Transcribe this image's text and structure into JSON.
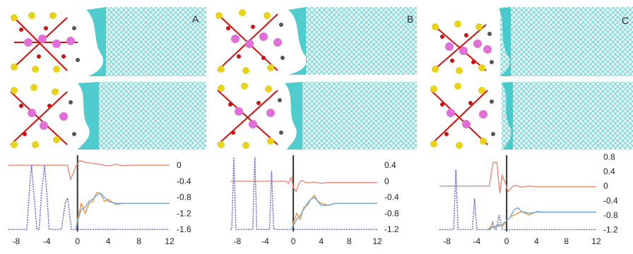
{
  "panels": [
    {
      "label": "A",
      "chart_data": {
        "type": "line",
        "x_ticks": [
          "-8",
          "-4",
          "0",
          "4",
          "8",
          "12"
        ],
        "xlim": [
          -9,
          12
        ],
        "y_ticks": [
          "0",
          "-0.4",
          "-0.8",
          "-1.2",
          "-1.6"
        ],
        "ylim": [
          -1.65,
          0.25
        ],
        "grid": false,
        "series": [
          {
            "color": "#e88a7a",
            "dashed": false,
            "x": [
              -9,
              -1.3,
              -1.2,
              -0.9,
              -0.6,
              -0.2,
              0.3,
              1,
              2,
              3,
              4,
              5,
              6,
              7,
              8,
              12
            ],
            "y": [
              0,
              0,
              -0.1,
              -0.35,
              -0.22,
              -0.02,
              0.12,
              0.07,
              0.05,
              0.02,
              -0.02,
              0.02,
              -0.01,
              0,
              0,
              0
            ]
          },
          {
            "color": "#5b5bd6",
            "dashed": true,
            "x": [
              -9,
              -6.6,
              -6.3,
              -6,
              -5.7,
              -5.3,
              -5,
              -4.7,
              -4.3,
              -4,
              -3.7,
              -2.1,
              -1.6,
              -1.3,
              -1.2,
              -0.8,
              -0.5,
              12
            ],
            "y": [
              -1.6,
              -1.6,
              -0.7,
              0,
              -0.7,
              -1.6,
              -1.6,
              -0.7,
              0,
              -0.7,
              -1.6,
              -1.6,
              -0.95,
              -0.82,
              -0.95,
              -1.6,
              -1.6,
              -1.6
            ]
          },
          {
            "color": "#f0963c",
            "dashed": false,
            "x": [
              -0.2,
              0,
              0.5,
              1,
              1.5,
              2,
              2.5,
              3,
              3.5,
              4,
              5,
              6,
              8,
              10,
              12
            ],
            "y": [
              -1.6,
              -1.35,
              -0.95,
              -1.2,
              -0.95,
              -0.9,
              -0.68,
              -0.7,
              -0.9,
              -0.85,
              -0.98,
              -0.95,
              -0.95,
              -0.95,
              -0.95
            ]
          },
          {
            "color": "#6aa7d6",
            "dashed": false,
            "x": [
              -0.2,
              0,
              0.5,
              1,
              1.5,
              2,
              2.5,
              3,
              3.5,
              4,
              5,
              6,
              8,
              10,
              12
            ],
            "y": [
              -1.6,
              -1.4,
              -1.1,
              -1.05,
              -0.9,
              -0.85,
              -0.75,
              -0.7,
              -0.8,
              -0.9,
              -0.95,
              -0.95,
              -0.95,
              -0.95,
              -0.95
            ]
          }
        ]
      }
    },
    {
      "label": "B",
      "chart_data": {
        "type": "line",
        "x_ticks": [
          "-8",
          "-4",
          "0",
          "4",
          "8",
          "12"
        ],
        "xlim": [
          -9,
          12
        ],
        "y_ticks": [
          "0.4",
          "0",
          "-0.4",
          "-0.8",
          "-1.2"
        ],
        "ylim": [
          -1.25,
          0.65
        ],
        "grid": false,
        "series": [
          {
            "color": "#e88a7a",
            "dashed": false,
            "x": [
              -9,
              -1,
              -0.7,
              -0.3,
              0,
              0.4,
              0.8,
              1.2,
              2,
              3,
              4,
              5,
              6,
              12
            ],
            "y": [
              0,
              0,
              -0.05,
              0.1,
              -0.15,
              -0.25,
              -0.05,
              0.02,
              -0.04,
              -0.02,
              -0.05,
              -0.03,
              -0.03,
              -0.03
            ]
          },
          {
            "color": "#5b5bd6",
            "dashed": true,
            "x": [
              -9,
              -8.8,
              -8.5,
              -8.2,
              -8,
              -5.8,
              -5.5,
              -5.2,
              -5,
              -3.4,
              -3.1,
              -2.8,
              -2.6,
              12
            ],
            "y": [
              -1.2,
              -1.2,
              0.6,
              -1.2,
              -1.2,
              -1.2,
              0.6,
              -1.2,
              -1.2,
              -1.2,
              0.25,
              -1.2,
              -1.2,
              -1.2
            ]
          },
          {
            "color": "#f0963c",
            "dashed": false,
            "x": [
              -0.2,
              0,
              0.5,
              1,
              1.5,
              2,
              2.5,
              3,
              3.5,
              4,
              5,
              6,
              8,
              12
            ],
            "y": [
              -1.2,
              -1.05,
              -0.8,
              -0.95,
              -0.65,
              -0.6,
              -0.45,
              -0.35,
              -0.5,
              -0.55,
              -0.6,
              -0.55,
              -0.55,
              -0.55
            ]
          },
          {
            "color": "#6aa7d6",
            "dashed": false,
            "x": [
              -0.2,
              0,
              0.5,
              1,
              1.5,
              2,
              2.5,
              3,
              3.5,
              4,
              5,
              6,
              8,
              12
            ],
            "y": [
              -1.2,
              -1.1,
              -0.95,
              -0.85,
              -0.7,
              -0.55,
              -0.45,
              -0.4,
              -0.5,
              -0.6,
              -0.6,
              -0.55,
              -0.55,
              -0.55
            ]
          }
        ]
      }
    },
    {
      "label": "C",
      "chart_data": {
        "type": "line",
        "x_ticks": [
          "-8",
          "-4",
          "0",
          "4",
          "8",
          "12"
        ],
        "xlim": [
          -9,
          12
        ],
        "y_ticks": [
          "0.8",
          "0.4",
          "0",
          "-0.4",
          "-0.8",
          "-1.2"
        ],
        "ylim": [
          -1.25,
          0.85
        ],
        "grid": false,
        "series": [
          {
            "color": "#e88a7a",
            "dashed": false,
            "x": [
              -9,
              -2.3,
              -2.1,
              -1.8,
              -1.3,
              -1.1,
              -0.9,
              -0.6,
              -0.2,
              0.2,
              0.6,
              1,
              1.5,
              2,
              3,
              4,
              12
            ],
            "y": [
              0,
              0,
              0.3,
              0.65,
              0.65,
              0.2,
              -0.2,
              0.3,
              0.1,
              -0.15,
              -0.05,
              0.02,
              0,
              -0.03,
              0,
              -0.02,
              -0.02
            ]
          },
          {
            "color": "#5b5bd6",
            "dashed": true,
            "x": [
              -9,
              -7.1,
              -6.8,
              -6.5,
              -6.2,
              -4.6,
              -4.3,
              -4,
              -3.7,
              -2.2,
              -1.9,
              -1.6,
              -1.4,
              -1,
              -0.6,
              -0.2,
              0,
              12
            ],
            "y": [
              -1.2,
              -1.2,
              0.45,
              -1.2,
              -1.2,
              -1.2,
              -0.35,
              -1.2,
              -1.2,
              -1.2,
              -1,
              -1.2,
              -1.2,
              -0.8,
              -1.2,
              -1.2,
              -1.2,
              -1.2
            ]
          },
          {
            "color": "#f0963c",
            "dashed": false,
            "x": [
              -2.5,
              -2,
              -1.5,
              -1,
              -0.5,
              0,
              0.5,
              1,
              1.5,
              2,
              3,
              4,
              5,
              6,
              8,
              12
            ],
            "y": [
              -1.2,
              -1.1,
              -1.15,
              -1.05,
              -1.1,
              -0.95,
              -0.85,
              -0.8,
              -0.75,
              -0.7,
              -0.8,
              -0.7,
              -0.72,
              -0.72,
              -0.72,
              -0.72
            ]
          },
          {
            "color": "#6aa7d6",
            "dashed": false,
            "x": [
              -2.5,
              -2,
              -1.5,
              -1,
              -0.5,
              0,
              0.5,
              1,
              1.5,
              2,
              3,
              4,
              5,
              6,
              8,
              12
            ],
            "y": [
              -1.2,
              -1.15,
              -1.1,
              -1.1,
              -1.05,
              -0.95,
              -0.85,
              -0.65,
              -0.6,
              -0.7,
              -0.75,
              -0.72,
              -0.72,
              -0.72,
              -0.72,
              -0.72
            ]
          }
        ]
      }
    }
  ]
}
